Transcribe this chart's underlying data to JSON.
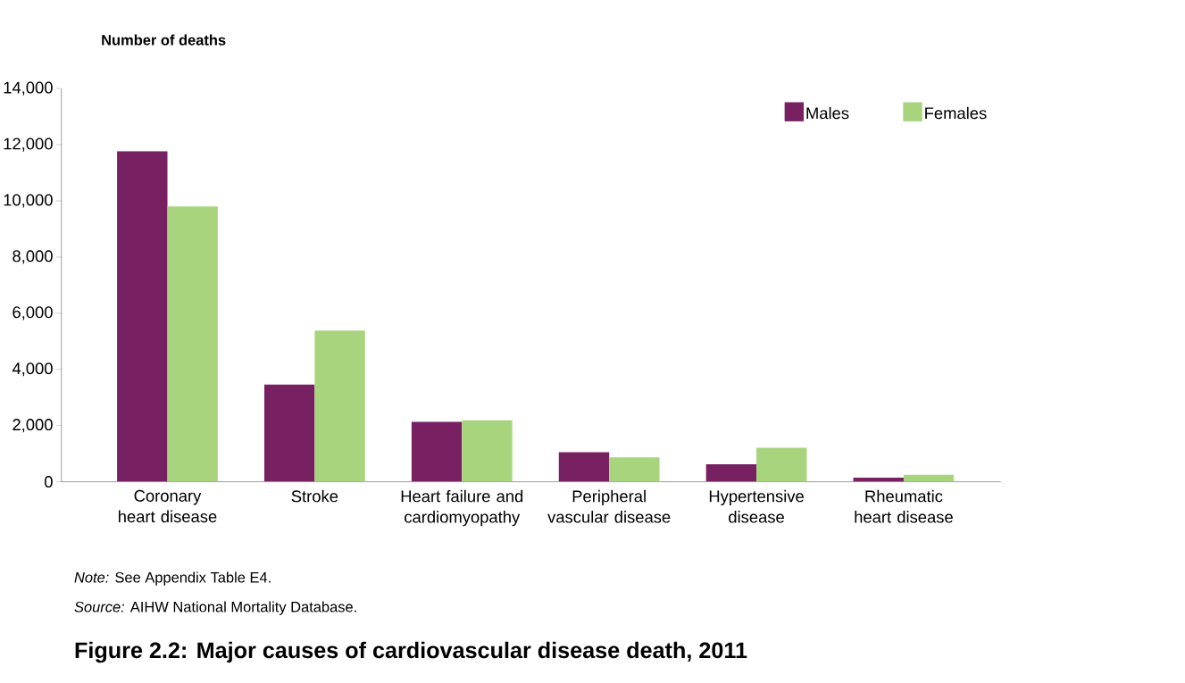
{
  "chart_data": {
    "type": "bar",
    "title": "Figure 2.2: Major causes of cardiovascular disease death, 2011",
    "ylabel": "Number of deaths",
    "categories": [
      "Coronary heart disease",
      "Stroke",
      "Heart failure and cardiomyopathy",
      "Peripheral vascular disease",
      "Hypertensive disease",
      "Rheumatic heart disease"
    ],
    "series": [
      {
        "name": "Males",
        "color": "#772062",
        "values": [
          11770,
          3460,
          2130,
          1050,
          620,
          150
        ]
      },
      {
        "name": "Females",
        "color": "#a8d47e",
        "values": [
          9800,
          5380,
          2190,
          870,
          1210,
          250
        ]
      }
    ],
    "ylim": [
      0,
      14000
    ],
    "yticks": [
      0,
      {
        "value": 2000,
        "label": "2,000"
      },
      {
        "value": 4000,
        "label": "4,000"
      },
      {
        "value": 6000,
        "label": "6,000"
      },
      {
        "value": 8000,
        "label": "8,000"
      },
      {
        "value": 10000,
        "label": "10,000"
      },
      {
        "value": 12000,
        "label": "12,000"
      },
      {
        "value": 14000,
        "label": "14,000"
      }
    ],
    "legend": "top right",
    "grid": false,
    "annotations": [
      "*Note:* See Appendix Table E4.",
      "*Source:* AIHW National Mortality Database."
    ]
  }
}
